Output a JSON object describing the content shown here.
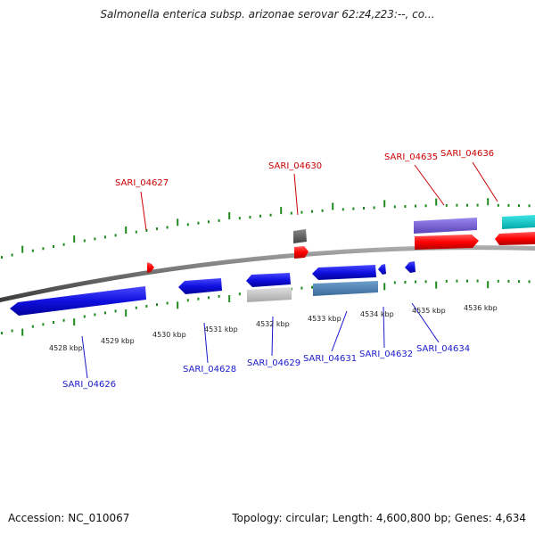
{
  "title": "Salmonella enterica subsp. arizonae serovar 62:z4,z23:--, co...",
  "footer": {
    "accession": "Accession: NC_010067",
    "stats": "Topology: circular; Length: 4,600,800 bp; Genes: 4,634"
  },
  "scale_labels": [
    "4528 kbp",
    "4529 kbp",
    "4530 kbp",
    "4531 kbp",
    "4532 kbp",
    "4533 kbp",
    "4534 kbp",
    "4535 kbp",
    "4536 kbp"
  ],
  "genes_top": [
    "SARI_04627",
    "SARI_04630",
    "SARI_04635",
    "SARI_04636"
  ],
  "genes_bottom": [
    "SARI_04626",
    "SARI_04628",
    "SARI_04629",
    "SARI_04631",
    "SARI_04632",
    "SARI_04634"
  ],
  "colors": {
    "backbone": "#7a7a7a",
    "tick": "#1e8a1e",
    "forward_gene": "#ff0000",
    "reverse_gene": "#1010e0",
    "label_top": "#cc0000",
    "label_bottom": "#1a1acc"
  }
}
